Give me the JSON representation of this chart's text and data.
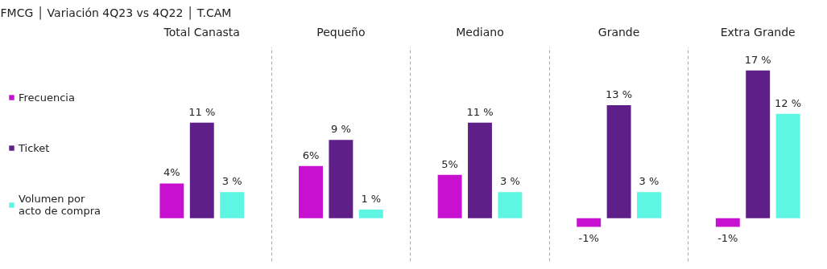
{
  "chart_data": {
    "type": "bar",
    "title": "FMCG │ Variación 4Q23 vs 4Q22 │ T.CAM",
    "categories": [
      "Total Canasta",
      "Pequeño",
      "Mediano",
      "Grande",
      "Extra Grande"
    ],
    "series": [
      {
        "name": "Frecuencia",
        "color": "#c810d0",
        "values": [
          4,
          6,
          5,
          -1,
          -1
        ],
        "value_labels": [
          "4%",
          "6%",
          "5%",
          "-1%",
          "-1%"
        ]
      },
      {
        "name": "Ticket",
        "color": "#5e1f88",
        "values": [
          11,
          9,
          11,
          13,
          17
        ],
        "value_labels": [
          "11 %",
          "9 %",
          "11 %",
          "13 %",
          "17 %"
        ]
      },
      {
        "name": "Volumen por acto de compra",
        "color": "#5ef5e2",
        "values": [
          3,
          1,
          3,
          3,
          12
        ],
        "value_labels": [
          "3 %",
          "1 %",
          "3 %",
          "3 %",
          "12 %"
        ]
      }
    ],
    "grid": "x",
    "legend": "left"
  }
}
